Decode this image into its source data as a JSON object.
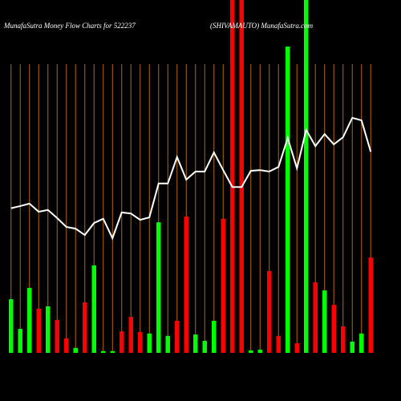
{
  "chart_data": {
    "type": "bar",
    "title": "MunafaSutra  Money Flow  Charts for 522237",
    "subtitle": "(SHIVAMAUTO) MunafaSutra.com",
    "ylim": [
      0,
      100
    ],
    "grid": true,
    "grid_color": "#b8650a",
    "series": [
      {
        "name": "Money Flow",
        "type": "bar",
        "values": [
          15.2,
          6.8,
          18.4,
          12.5,
          13.2,
          9.3,
          4.1,
          1.4,
          14.3,
          24.8,
          0.5,
          0.5,
          6.1,
          10.2,
          5.9,
          5.5,
          37,
          4.8,
          9.1,
          38.6,
          5.2,
          3.4,
          9.1,
          38,
          100,
          100,
          0.7,
          0.9,
          23.2,
          4.8,
          86.8,
          2.7,
          100,
          20,
          17.7,
          13.6,
          7.5,
          3.2,
          5.5,
          27
        ],
        "colors": [
          "#00ff00",
          "#00ff00",
          "#00ff00",
          "#ff0000",
          "#00ff00",
          "#ff0000",
          "#ff0000",
          "#00ff00",
          "#ff0000",
          "#00ff00",
          "#00ff00",
          "#00ff00",
          "#ff0000",
          "#ff0000",
          "#ff0000",
          "#00ff00",
          "#00ff00",
          "#00ff00",
          "#ff0000",
          "#ff0000",
          "#00ff00",
          "#00ff00",
          "#00ff00",
          "#ff0000",
          "#ff0000",
          "#ff0000",
          "#00ff00",
          "#00ff00",
          "#ff0000",
          "#ff0000",
          "#00ff00",
          "#ff0000",
          "#00ff00",
          "#ff0000",
          "#00ff00",
          "#ff0000",
          "#ff0000",
          "#00ff00",
          "#00ff00",
          "#ff0000"
        ]
      },
      {
        "name": "Price",
        "type": "line",
        "color": "#ffffff",
        "values": [
          41,
          41.6,
          42.3,
          40,
          40.5,
          38.2,
          35.7,
          35.2,
          33.4,
          36.8,
          38,
          32.5,
          39.8,
          39.5,
          37.7,
          38.4,
          48,
          48,
          55.5,
          49.1,
          51.4,
          51.4,
          56.8,
          51.8,
          47,
          47,
          51.6,
          51.8,
          51.4,
          52.7,
          60.9,
          52.3,
          63.2,
          58.6,
          62,
          59.1,
          61.1,
          66.6,
          65.9,
          57
        ]
      }
    ]
  }
}
